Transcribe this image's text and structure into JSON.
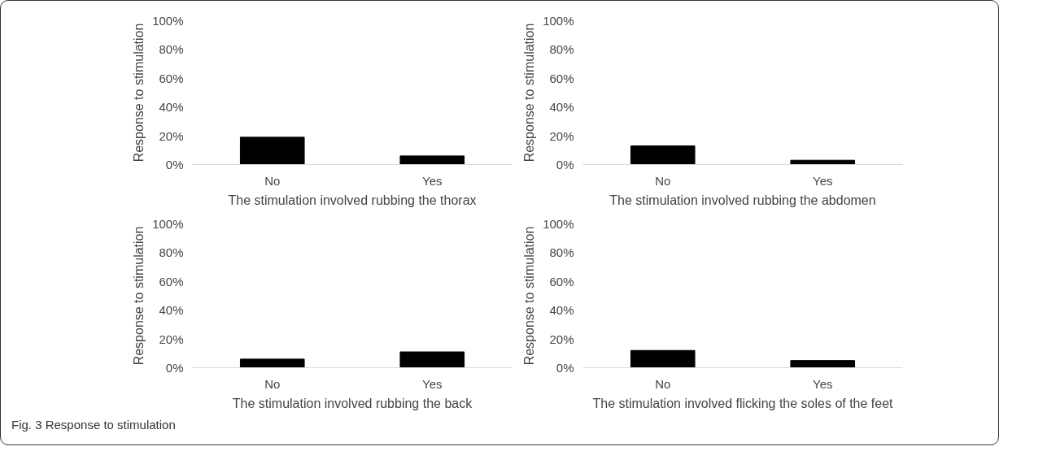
{
  "chart_data": [
    {
      "type": "bar",
      "categories": [
        "No",
        "Yes"
      ],
      "values": [
        19,
        6
      ],
      "color": "#000000",
      "xlabel": "The stimulation involved rubbing the thorax",
      "ylabel": "Response to stimulation",
      "ylim": [
        0,
        100
      ],
      "yticks": [
        {
          "value": 0,
          "label": "0%"
        },
        {
          "value": 20,
          "label": "20%"
        },
        {
          "value": 40,
          "label": "40%"
        },
        {
          "value": 60,
          "label": "60%"
        },
        {
          "value": 80,
          "label": "80%"
        },
        {
          "value": 100,
          "label": "100%"
        }
      ]
    },
    {
      "type": "bar",
      "categories": [
        "No",
        "Yes"
      ],
      "values": [
        13,
        3
      ],
      "color": "#000000",
      "xlabel": "The stimulation involved rubbing the abdomen",
      "ylabel": "Response to stimulation",
      "ylim": [
        0,
        100
      ],
      "yticks": [
        {
          "value": 0,
          "label": "0%"
        },
        {
          "value": 20,
          "label": "20%"
        },
        {
          "value": 40,
          "label": "40%"
        },
        {
          "value": 60,
          "label": "60%"
        },
        {
          "value": 80,
          "label": "80%"
        },
        {
          "value": 100,
          "label": "100%"
        }
      ]
    },
    {
      "type": "bar",
      "categories": [
        "No",
        "Yes"
      ],
      "values": [
        6,
        11
      ],
      "color": "#000000",
      "xlabel": "The stimulation involved rubbing the back",
      "ylabel": "Response to stimulation",
      "ylim": [
        0,
        100
      ],
      "yticks": [
        {
          "value": 0,
          "label": "0%"
        },
        {
          "value": 20,
          "label": "20%"
        },
        {
          "value": 40,
          "label": "40%"
        },
        {
          "value": 60,
          "label": "60%"
        },
        {
          "value": 80,
          "label": "80%"
        },
        {
          "value": 100,
          "label": "100%"
        }
      ]
    },
    {
      "type": "bar",
      "categories": [
        "No",
        "Yes"
      ],
      "values": [
        12,
        5
      ],
      "color": "#000000",
      "xlabel": "The stimulation involved flicking the soles of the feet",
      "ylabel": "Response to stimulation",
      "ylim": [
        0,
        100
      ],
      "yticks": [
        {
          "value": 0,
          "label": "0%"
        },
        {
          "value": 20,
          "label": "20%"
        },
        {
          "value": 40,
          "label": "40%"
        },
        {
          "value": 60,
          "label": "60%"
        },
        {
          "value": 80,
          "label": "80%"
        },
        {
          "value": 100,
          "label": "100%"
        }
      ],
      "annotations": [
        "Fig. 3 Response to stimulation"
      ]
    }
  ]
}
